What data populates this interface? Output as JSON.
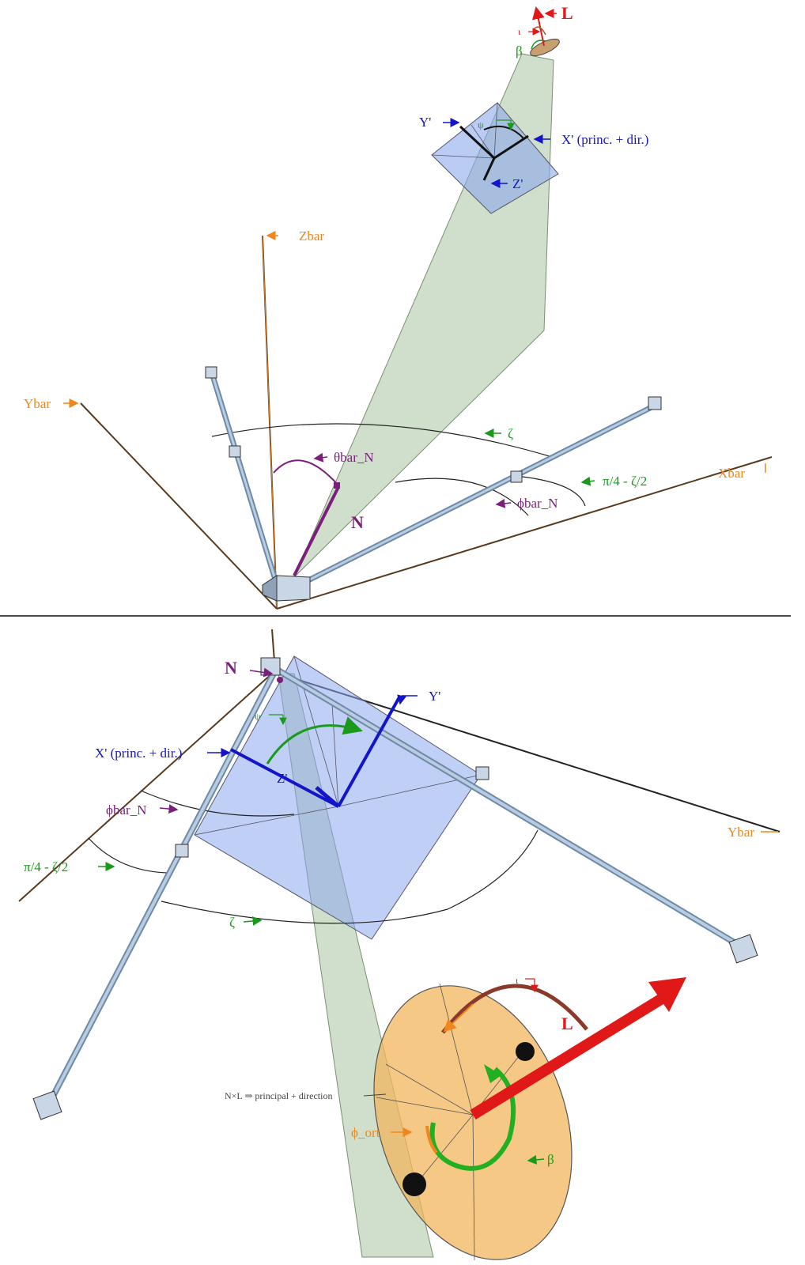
{
  "colors": {
    "axis_orange": "#f0861e",
    "axis_brown": "#5a3a1e",
    "purple": "#7a1f7a",
    "green": "#1a9a1a",
    "blue": "#1414c8",
    "red": "#e01818",
    "rod_blue": "#a8c4e0",
    "plane_green": "#a9c4a0",
    "plane_blue": "#8ca8ec",
    "disk_orange": "#f2b55e"
  },
  "top_panel": {
    "labels": {
      "L": "L",
      "iota": "ι",
      "beta": "β",
      "psi": "ψ",
      "Yprime": "Y'",
      "Xprime": "X' (princ. + dir.)",
      "Zprime": "Z'",
      "Zbar": "Zbar",
      "Ybar": "Ybar",
      "Xbar": "Xbar",
      "zeta": "ζ",
      "theta_bar_N": "θbar_N",
      "pi4_zeta2": "π/4 - ζ/2",
      "phi_bar_N": "ϕbar_N",
      "N": "N"
    }
  },
  "bottom_panel": {
    "labels": {
      "N": "N",
      "Yprime": "Y'",
      "psi": "ψ",
      "Xprime": "X' (princ. + dir.)",
      "Zprime": "Z'",
      "phi_bar_N": "ϕbar_N",
      "Ybar": "Ybar",
      "pi4_zeta2": "π/4 - ζ/2",
      "zeta": "ζ",
      "iota": "ι",
      "L": "L",
      "NxL": "N×L ⇒ principal + direction",
      "phi_ort": "ϕ_ort",
      "beta": "β"
    }
  }
}
